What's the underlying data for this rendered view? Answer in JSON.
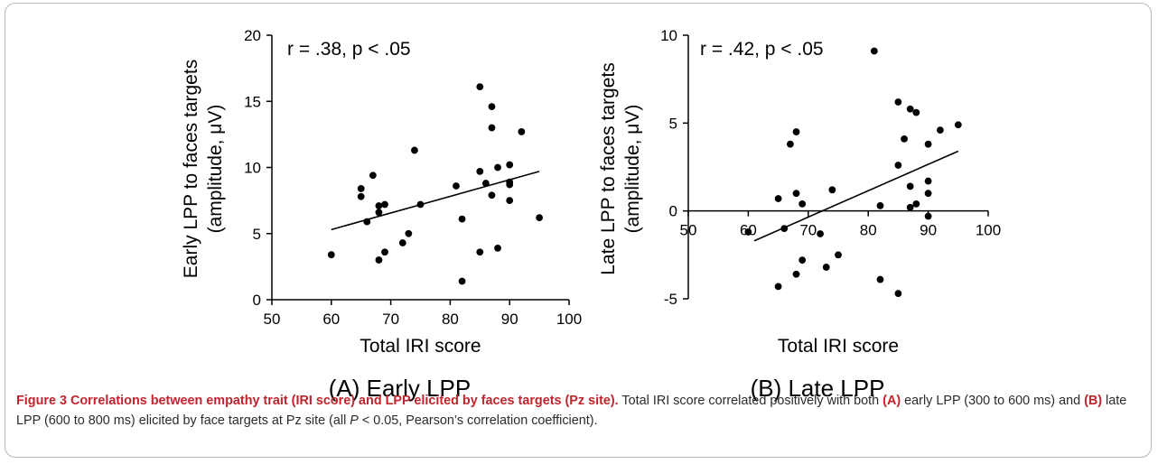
{
  "chart_data": [
    {
      "type": "scatter",
      "panel_label": "(A) Early LPP",
      "xlabel": "Total IRI score",
      "ylabel_line1": "Early LPP to faces targets",
      "ylabel_line2": "(amplitude, μV)",
      "annotation": "r = .38, p < .05",
      "xlim": [
        50,
        100
      ],
      "ylim": [
        0,
        20
      ],
      "xticks": [
        "50",
        "60",
        "70",
        "80",
        "90",
        "100"
      ],
      "yticks": [
        "0",
        "5",
        "10",
        "15",
        "20"
      ],
      "grid": false,
      "trendline": {
        "x": [
          60,
          95
        ],
        "y": [
          5.3,
          9.7
        ]
      },
      "points": [
        {
          "x": 60,
          "y": 3.4
        },
        {
          "x": 65,
          "y": 8.4
        },
        {
          "x": 65,
          "y": 7.8
        },
        {
          "x": 66,
          "y": 5.9
        },
        {
          "x": 67,
          "y": 9.4
        },
        {
          "x": 68,
          "y": 7.1
        },
        {
          "x": 68,
          "y": 6.6
        },
        {
          "x": 68,
          "y": 3.0
        },
        {
          "x": 69,
          "y": 7.2
        },
        {
          "x": 69,
          "y": 3.6
        },
        {
          "x": 72,
          "y": 4.3
        },
        {
          "x": 73,
          "y": 5.0
        },
        {
          "x": 74,
          "y": 11.3
        },
        {
          "x": 75,
          "y": 7.2
        },
        {
          "x": 81,
          "y": 8.6
        },
        {
          "x": 82,
          "y": 6.1
        },
        {
          "x": 82,
          "y": 1.4
        },
        {
          "x": 85,
          "y": 16.1
        },
        {
          "x": 85,
          "y": 9.7
        },
        {
          "x": 85,
          "y": 3.6
        },
        {
          "x": 86,
          "y": 8.8
        },
        {
          "x": 87,
          "y": 14.6
        },
        {
          "x": 87,
          "y": 13.0
        },
        {
          "x": 87,
          "y": 7.9
        },
        {
          "x": 88,
          "y": 10.0
        },
        {
          "x": 88,
          "y": 3.9
        },
        {
          "x": 90,
          "y": 10.2
        },
        {
          "x": 90,
          "y": 8.9
        },
        {
          "x": 90,
          "y": 8.7
        },
        {
          "x": 90,
          "y": 7.5
        },
        {
          "x": 92,
          "y": 12.7
        },
        {
          "x": 95,
          "y": 6.2
        }
      ]
    },
    {
      "type": "scatter",
      "panel_label": "(B) Late LPP",
      "xlabel": "Total IRI score",
      "ylabel_line1": "Late LPP to faces targets",
      "ylabel_line2": "(amplitude, μV)",
      "annotation": "r = .42, p < .05",
      "xlim": [
        50,
        100
      ],
      "ylim": [
        -5,
        10
      ],
      "xticks": [
        "50",
        "60",
        "70",
        "80",
        "90",
        "100"
      ],
      "yticks": [
        "-5",
        "0",
        "5",
        "10"
      ],
      "grid": false,
      "trendline": {
        "x": [
          61,
          95
        ],
        "y": [
          -1.7,
          3.4
        ]
      },
      "points": [
        {
          "x": 60,
          "y": -1.2
        },
        {
          "x": 65,
          "y": 0.7
        },
        {
          "x": 65,
          "y": -4.3
        },
        {
          "x": 66,
          "y": -1.0
        },
        {
          "x": 67,
          "y": 3.8
        },
        {
          "x": 68,
          "y": 4.5
        },
        {
          "x": 68,
          "y": 1.0
        },
        {
          "x": 68,
          "y": -3.6
        },
        {
          "x": 69,
          "y": 0.4
        },
        {
          "x": 69,
          "y": -2.8
        },
        {
          "x": 72,
          "y": -1.3
        },
        {
          "x": 73,
          "y": -3.2
        },
        {
          "x": 74,
          "y": 1.2
        },
        {
          "x": 75,
          "y": -2.5
        },
        {
          "x": 81,
          "y": 9.1
        },
        {
          "x": 82,
          "y": 0.3
        },
        {
          "x": 82,
          "y": -3.9
        },
        {
          "x": 85,
          "y": 6.2
        },
        {
          "x": 85,
          "y": 2.6
        },
        {
          "x": 85,
          "y": -4.7
        },
        {
          "x": 86,
          "y": 4.1
        },
        {
          "x": 87,
          "y": 5.8
        },
        {
          "x": 87,
          "y": 1.4
        },
        {
          "x": 87,
          "y": 0.2
        },
        {
          "x": 88,
          "y": 5.6
        },
        {
          "x": 88,
          "y": 0.4
        },
        {
          "x": 90,
          "y": 3.8
        },
        {
          "x": 90,
          "y": 1.7
        },
        {
          "x": 90,
          "y": 1.0
        },
        {
          "x": 90,
          "y": -0.3
        },
        {
          "x": 92,
          "y": 4.6
        },
        {
          "x": 95,
          "y": 4.9
        }
      ]
    }
  ],
  "caption": {
    "title": "Figure 3 Correlations between empathy trait (IRI score) and LPP elicited by faces targets (Pz site).",
    "t1": " Total IRI score correlated positively with both ",
    "a": "(A)",
    "t2": " early LPP (300 to 600 ms) and ",
    "b": "(B)",
    "t3": " late LPP (600 to 800 ms) elicited by face targets at Pz site (all ",
    "p": "P",
    "t4": " < 0.05, Pearson’s correlation coefficient)."
  }
}
